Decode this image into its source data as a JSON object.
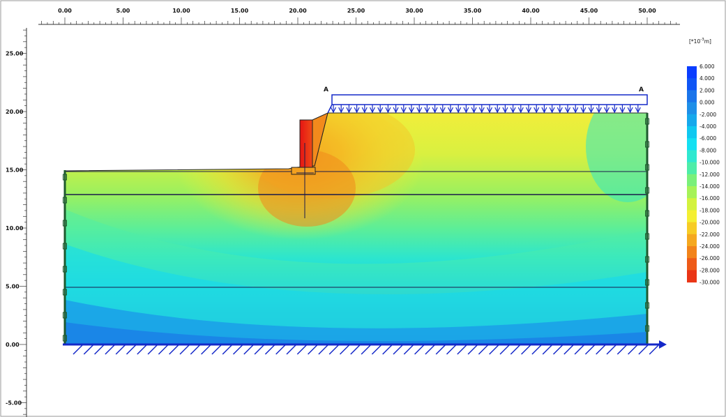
{
  "rulers": {
    "x_ticks": [
      "0.00",
      "5.00",
      "10.00",
      "15.00",
      "20.00",
      "25.00",
      "30.00",
      "35.00",
      "40.00",
      "45.00",
      "50.00"
    ],
    "y_ticks": [
      "25.00",
      "20.00",
      "15.00",
      "10.00",
      "5.00",
      "0.00",
      "-5.00"
    ]
  },
  "legend": {
    "unit_prefix": "[*10",
    "unit_exp": "-3",
    "unit_suffix": "m]",
    "entries": [
      {
        "label": "6.000",
        "color": "#0a3dff"
      },
      {
        "label": "4.000",
        "color": "#0f55f5"
      },
      {
        "label": "2.000",
        "color": "#1a74ea"
      },
      {
        "label": "0.000",
        "color": "#1e8fe8"
      },
      {
        "label": "-2.000",
        "color": "#16a8ec"
      },
      {
        "label": "-4.000",
        "color": "#10c8f0"
      },
      {
        "label": "-6.000",
        "color": "#14e0f2"
      },
      {
        "label": "-8.000",
        "color": "#2fe8d0"
      },
      {
        "label": "-10.000",
        "color": "#4eeda8"
      },
      {
        "label": "-12.000",
        "color": "#7af07a"
      },
      {
        "label": "-14.000",
        "color": "#a6f258"
      },
      {
        "label": "-16.000",
        "color": "#d3f23e"
      },
      {
        "label": "-18.000",
        "color": "#f4ef32"
      },
      {
        "label": "-20.000",
        "color": "#f7cc25"
      },
      {
        "label": "-22.000",
        "color": "#f5a81f"
      },
      {
        "label": "-24.000",
        "color": "#f2831a"
      },
      {
        "label": "-26.000",
        "color": "#ee5a18"
      },
      {
        "label": "-28.000",
        "color": "#ea3516"
      },
      {
        "label": "-30.000",
        "color": "#e61414"
      }
    ]
  },
  "labels": {
    "point_a_left": "A",
    "point_a_right": "A"
  }
}
